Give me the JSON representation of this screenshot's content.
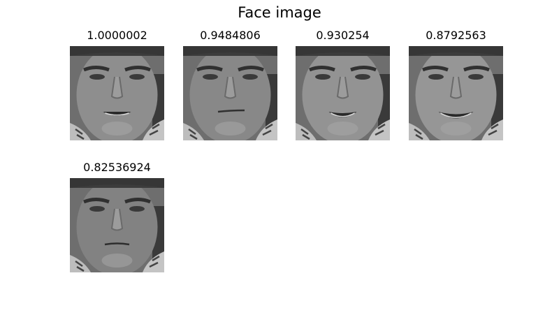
{
  "figure": {
    "title": "Face image",
    "panels": [
      {
        "label": "1.0000002",
        "expression": "grimace",
        "face_shade": "#8e8e8e"
      },
      {
        "label": "0.9484806",
        "expression": "neutral-smirk",
        "face_shade": "#888888"
      },
      {
        "label": "0.930254",
        "expression": "smile-teeth",
        "face_shade": "#939393"
      },
      {
        "label": "0.8792563",
        "expression": "wide-smile",
        "face_shade": "#969696"
      },
      {
        "label": "0.82536924",
        "expression": "neutral",
        "face_shade": "#828282"
      }
    ]
  }
}
